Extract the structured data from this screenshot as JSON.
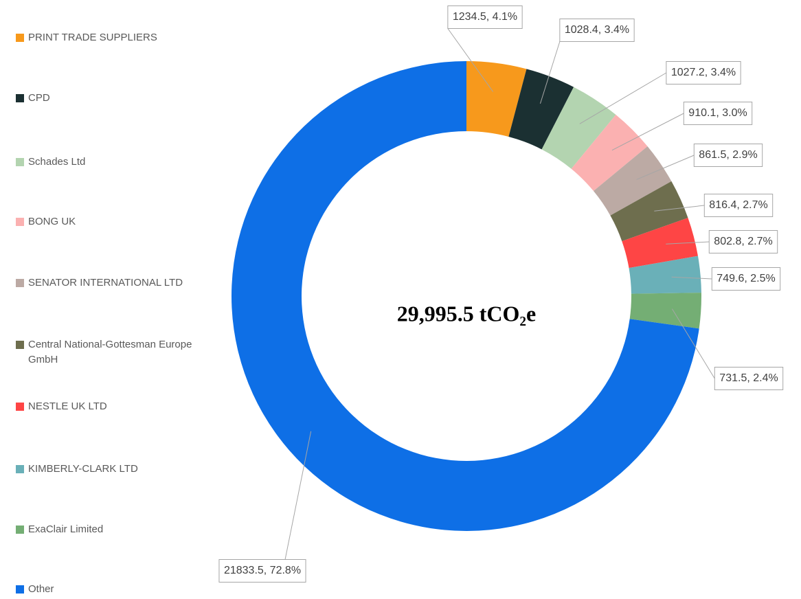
{
  "chart_data": {
    "type": "donut",
    "center_label": "29,995.5 tCO₂e",
    "categories": [
      "PRINT TRADE SUPPLIERS",
      "CPD",
      "Schades Ltd",
      "BONG UK",
      "SENATOR INTERNATIONAL LTD",
      "Central National-Gottesman Europe GmbH",
      "NESTLE UK LTD",
      "KIMBERLY-CLARK LTD",
      "ExaClair Limited",
      "Other"
    ],
    "values": [
      1234.5,
      1028.4,
      1027.2,
      910.1,
      861.5,
      816.4,
      802.8,
      749.6,
      731.5,
      21833.5
    ],
    "value_labels": [
      "1234.5, 4.1%",
      "1028.4, 3.4%",
      "1027.2, 3.4%",
      "910.1, 3.0%",
      "861.5, 2.9%",
      "816.4, 2.7%",
      "802.8, 2.7%",
      "749.6, 2.5%",
      "731.5, 2.4%",
      "21833.5, 72.8%"
    ],
    "colors": [
      "#f7991c",
      "#1b3032",
      "#b3d4b0",
      "#fbb1b1",
      "#bcaaa4",
      "#6e6e4e",
      "#fe4545",
      "#6ab0b8",
      "#74ae74",
      "#0e6fe6"
    ],
    "legend": "left"
  }
}
